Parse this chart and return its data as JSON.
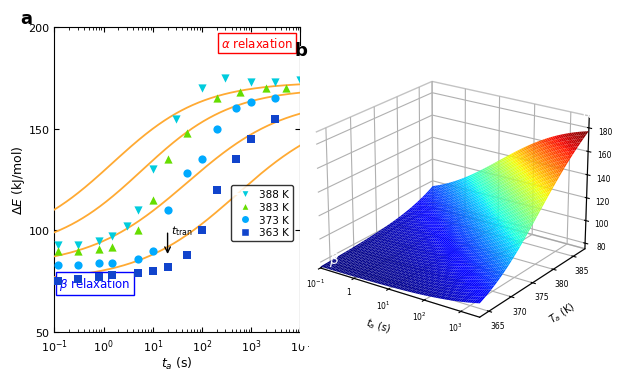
{
  "panel_a": {
    "xlabel": "$t_a$ (s)",
    "ylabel": "$\\Delta E$ (kJ/mol)",
    "ylim": [
      50,
      200
    ],
    "xlim": [
      0.1,
      10000
    ],
    "series": [
      {
        "label": "388 K",
        "color": "#00CCDD",
        "marker": "v",
        "E_beta": 93,
        "E_alpha": 173,
        "t_mid": 1.5,
        "k": 1.1
      },
      {
        "label": "383 K",
        "color": "#66DD00",
        "marker": "^",
        "E_beta": 89,
        "E_alpha": 170,
        "t_mid": 6.0,
        "k": 1.1
      },
      {
        "label": "373 K",
        "color": "#00AAFF",
        "marker": "o",
        "E_beta": 82,
        "E_alpha": 165,
        "t_mid": 50.0,
        "k": 1.0
      },
      {
        "label": "363 K",
        "color": "#1144CC",
        "marker": "s",
        "E_beta": 75,
        "E_alpha": 160,
        "t_mid": 500.0,
        "k": 1.0
      }
    ],
    "curve_color": "#FFAA33",
    "alpha_label_color": "red",
    "beta_label_color": "blue"
  },
  "panel_b": {
    "T_min": 363,
    "T_max": 388,
    "t_log_min": -1,
    "t_log_max": 3.5,
    "zlim": [
      75,
      190
    ],
    "zticks": [
      80,
      100,
      120,
      140,
      160,
      180
    ],
    "yticks": [
      365,
      370,
      375,
      380,
      385
    ],
    "xtick_vals": [
      -1,
      0,
      1,
      2,
      3
    ],
    "xtick_labels": [
      "10⁻¹",
      "1",
      "10¹",
      "10²",
      "10³"
    ]
  }
}
